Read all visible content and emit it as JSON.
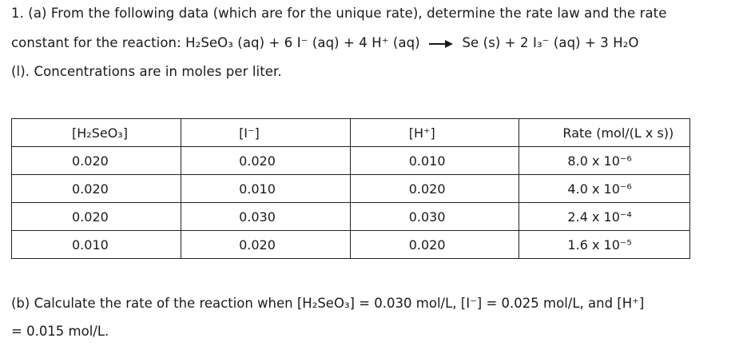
{
  "question": {
    "line1": "1. (a) From the following data (which are for the unique rate), determine the rate law and the rate",
    "line2_prefix": "constant for the reaction: H₂SeO₃ (aq) + 6 I⁻ (aq) + 4 H⁺ (aq)",
    "line2_suffix": "Se (s) + 2 I₃⁻ (aq) + 3 H₂O",
    "line3": "(l). Concentrations are in moles per liter."
  },
  "table": {
    "headers": [
      "[H₂SeO₃]",
      "[I⁻]",
      "[H⁺]",
      "Rate (mol/(L x s))"
    ],
    "rows": [
      [
        "0.020",
        "0.020",
        "0.010",
        "8.0 x 10⁻⁶"
      ],
      [
        "0.020",
        "0.010",
        "0.020",
        "4.0 x 10⁻⁶"
      ],
      [
        "0.020",
        "0.030",
        "0.030",
        "2.4 x 10⁻⁴"
      ],
      [
        "0.010",
        "0.020",
        "0.020",
        "1.6 x 10⁻⁵"
      ]
    ]
  },
  "part_b": {
    "line1": "(b) Calculate the rate of the reaction when [H₂SeO₃] = 0.030 mol/L, [I⁻] = 0.025 mol/L, and [H⁺]",
    "line2": "= 0.015 mol/L."
  }
}
